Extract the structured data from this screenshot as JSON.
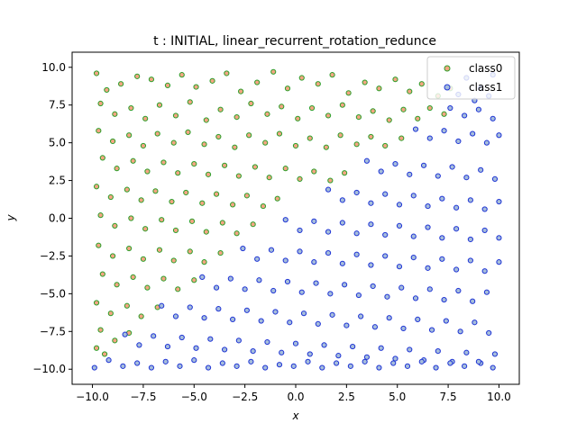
{
  "chart_data": {
    "type": "scatter",
    "title": "t : INITIAL, linear_recurrent_rotation_redunce",
    "xlabel": "x",
    "ylabel": "y",
    "xlim": [
      -11.0,
      11.0
    ],
    "ylim": [
      -11.0,
      11.0
    ],
    "xticks": [
      -10.0,
      -7.5,
      -5.0,
      -2.5,
      0.0,
      2.5,
      5.0,
      7.5,
      10.0
    ],
    "yticks": [
      -10.0,
      -7.5,
      -5.0,
      -2.5,
      0.0,
      2.5,
      5.0,
      7.5,
      10.0
    ],
    "xtick_labels": [
      "−10.0",
      "−7.5",
      "−5.0",
      "−2.5",
      "0.0",
      "2.5",
      "5.0",
      "7.5",
      "10.0"
    ],
    "ytick_labels": [
      "−10.0",
      "−7.5",
      "−5.0",
      "−2.5",
      "0.0",
      "2.5",
      "5.0",
      "7.5",
      "10.0"
    ],
    "grid": false,
    "legend_position": "top-right",
    "series": [
      {
        "name": "class0",
        "face_color": "#f4a582",
        "edge_color": "#2ca02c",
        "points": [
          [
            -9.8,
            9.6
          ],
          [
            -9.3,
            8.5
          ],
          [
            -8.6,
            8.9
          ],
          [
            -7.8,
            9.4
          ],
          [
            -7.1,
            9.2
          ],
          [
            -6.3,
            8.8
          ],
          [
            -5.6,
            9.5
          ],
          [
            -4.9,
            8.7
          ],
          [
            -4.1,
            9.1
          ],
          [
            -3.4,
            9.6
          ],
          [
            -2.7,
            8.4
          ],
          [
            -1.9,
            9.0
          ],
          [
            -1.1,
            9.7
          ],
          [
            -0.4,
            8.6
          ],
          [
            0.3,
            9.3
          ],
          [
            1.1,
            8.9
          ],
          [
            1.8,
            9.5
          ],
          [
            2.6,
            8.3
          ],
          [
            3.4,
            9.0
          ],
          [
            4.1,
            8.6
          ],
          [
            4.9,
            9.2
          ],
          [
            5.6,
            8.4
          ],
          [
            6.2,
            8.9
          ],
          [
            7.0,
            8.1
          ],
          [
            7.6,
            8.6
          ],
          [
            -9.6,
            7.6
          ],
          [
            -8.9,
            6.9
          ],
          [
            -8.1,
            7.3
          ],
          [
            -7.4,
            6.6
          ],
          [
            -6.7,
            7.5
          ],
          [
            -5.9,
            6.8
          ],
          [
            -5.2,
            7.7
          ],
          [
            -4.4,
            6.5
          ],
          [
            -3.7,
            7.2
          ],
          [
            -2.9,
            6.7
          ],
          [
            -2.2,
            7.6
          ],
          [
            -1.4,
            6.9
          ],
          [
            -0.7,
            7.4
          ],
          [
            0.1,
            6.6
          ],
          [
            0.8,
            7.3
          ],
          [
            1.6,
            6.8
          ],
          [
            2.3,
            7.5
          ],
          [
            3.1,
            6.7
          ],
          [
            3.8,
            7.1
          ],
          [
            4.6,
            6.5
          ],
          [
            5.3,
            7.2
          ],
          [
            6.0,
            6.6
          ],
          [
            6.6,
            7.3
          ],
          [
            7.3,
            6.9
          ],
          [
            -9.7,
            5.8
          ],
          [
            -9.0,
            5.1
          ],
          [
            -8.2,
            5.5
          ],
          [
            -7.5,
            4.8
          ],
          [
            -6.8,
            5.6
          ],
          [
            -6.0,
            5.0
          ],
          [
            -5.3,
            5.7
          ],
          [
            -4.5,
            4.9
          ],
          [
            -3.8,
            5.4
          ],
          [
            -3.0,
            4.7
          ],
          [
            -2.3,
            5.5
          ],
          [
            -1.5,
            5.0
          ],
          [
            -0.8,
            5.6
          ],
          [
            0.0,
            4.8
          ],
          [
            0.7,
            5.3
          ],
          [
            1.5,
            4.7
          ],
          [
            2.2,
            5.5
          ],
          [
            3.0,
            4.9
          ],
          [
            3.7,
            5.4
          ],
          [
            4.4,
            4.8
          ],
          [
            5.2,
            5.3
          ],
          [
            -9.5,
            4.0
          ],
          [
            -8.8,
            3.3
          ],
          [
            -8.0,
            3.8
          ],
          [
            -7.3,
            3.1
          ],
          [
            -6.5,
            3.7
          ],
          [
            -5.8,
            3.0
          ],
          [
            -5.0,
            3.6
          ],
          [
            -4.3,
            2.9
          ],
          [
            -3.5,
            3.5
          ],
          [
            -2.8,
            2.8
          ],
          [
            -2.0,
            3.4
          ],
          [
            -1.3,
            2.7
          ],
          [
            -0.5,
            3.3
          ],
          [
            0.2,
            2.6
          ],
          [
            0.9,
            3.1
          ],
          [
            1.7,
            2.5
          ],
          [
            2.4,
            3.0
          ],
          [
            -9.8,
            2.1
          ],
          [
            -9.1,
            1.4
          ],
          [
            -8.3,
            1.9
          ],
          [
            -7.6,
            1.2
          ],
          [
            -6.9,
            1.8
          ],
          [
            -6.1,
            1.1
          ],
          [
            -5.4,
            1.7
          ],
          [
            -4.6,
            1.0
          ],
          [
            -3.9,
            1.6
          ],
          [
            -3.1,
            0.9
          ],
          [
            -2.4,
            1.5
          ],
          [
            -1.6,
            0.8
          ],
          [
            -0.9,
            1.3
          ],
          [
            -9.6,
            0.2
          ],
          [
            -8.9,
            -0.5
          ],
          [
            -8.1,
            0.0
          ],
          [
            -7.4,
            -0.7
          ],
          [
            -6.6,
            -0.1
          ],
          [
            -5.9,
            -0.8
          ],
          [
            -5.1,
            -0.2
          ],
          [
            -4.4,
            -0.9
          ],
          [
            -3.6,
            -0.3
          ],
          [
            -2.9,
            -1.0
          ],
          [
            -2.1,
            -0.4
          ],
          [
            -9.7,
            -1.8
          ],
          [
            -9.0,
            -2.5
          ],
          [
            -8.2,
            -2.0
          ],
          [
            -7.5,
            -2.7
          ],
          [
            -6.7,
            -2.1
          ],
          [
            -6.0,
            -2.8
          ],
          [
            -5.2,
            -2.2
          ],
          [
            -4.5,
            -2.9
          ],
          [
            -3.7,
            -2.3
          ],
          [
            -9.5,
            -3.7
          ],
          [
            -8.8,
            -4.4
          ],
          [
            -8.0,
            -3.9
          ],
          [
            -7.3,
            -4.6
          ],
          [
            -6.5,
            -4.0
          ],
          [
            -5.8,
            -4.7
          ],
          [
            -5.0,
            -4.1
          ],
          [
            -9.8,
            -5.6
          ],
          [
            -9.1,
            -6.3
          ],
          [
            -8.3,
            -5.8
          ],
          [
            -7.6,
            -6.5
          ],
          [
            -6.8,
            -5.9
          ],
          [
            -9.6,
            -7.4
          ],
          [
            -8.9,
            -8.1
          ],
          [
            -8.2,
            -7.6
          ],
          [
            -9.4,
            -9.0
          ],
          [
            -9.8,
            -8.6
          ]
        ]
      },
      {
        "name": "class1",
        "face_color": "#a6bddb",
        "edge_color": "#1f35d6",
        "points": [
          [
            8.4,
            9.3
          ],
          [
            9.1,
            8.6
          ],
          [
            9.7,
            9.5
          ],
          [
            8.0,
            8.2
          ],
          [
            8.8,
            7.8
          ],
          [
            9.5,
            8.1
          ],
          [
            7.6,
            7.3
          ],
          [
            8.3,
            6.8
          ],
          [
            9.0,
            7.2
          ],
          [
            9.7,
            6.6
          ],
          [
            5.9,
            5.9
          ],
          [
            6.6,
            5.3
          ],
          [
            7.3,
            5.8
          ],
          [
            8.0,
            5.1
          ],
          [
            8.7,
            5.6
          ],
          [
            9.4,
            5.0
          ],
          [
            10.0,
            5.5
          ],
          [
            3.5,
            3.8
          ],
          [
            4.2,
            3.1
          ],
          [
            4.9,
            3.6
          ],
          [
            5.6,
            2.9
          ],
          [
            6.3,
            3.5
          ],
          [
            7.0,
            2.8
          ],
          [
            7.7,
            3.4
          ],
          [
            8.4,
            2.7
          ],
          [
            9.1,
            3.2
          ],
          [
            9.8,
            2.6
          ],
          [
            1.6,
            1.9
          ],
          [
            2.3,
            1.2
          ],
          [
            3.0,
            1.7
          ],
          [
            3.7,
            1.0
          ],
          [
            4.4,
            1.6
          ],
          [
            5.1,
            0.9
          ],
          [
            5.8,
            1.5
          ],
          [
            6.5,
            0.8
          ],
          [
            7.2,
            1.3
          ],
          [
            7.9,
            0.7
          ],
          [
            8.6,
            1.2
          ],
          [
            9.3,
            0.6
          ],
          [
            10.0,
            1.1
          ],
          [
            -0.5,
            -0.1
          ],
          [
            0.2,
            -0.8
          ],
          [
            0.9,
            -0.2
          ],
          [
            1.6,
            -0.9
          ],
          [
            2.3,
            -0.3
          ],
          [
            3.0,
            -1.0
          ],
          [
            3.7,
            -0.4
          ],
          [
            4.4,
            -1.1
          ],
          [
            5.1,
            -0.5
          ],
          [
            5.8,
            -1.2
          ],
          [
            6.5,
            -0.6
          ],
          [
            7.2,
            -1.3
          ],
          [
            7.9,
            -0.7
          ],
          [
            8.6,
            -1.4
          ],
          [
            9.3,
            -0.8
          ],
          [
            10.0,
            -1.3
          ],
          [
            -2.6,
            -2.0
          ],
          [
            -1.9,
            -2.7
          ],
          [
            -1.2,
            -2.1
          ],
          [
            -0.5,
            -2.8
          ],
          [
            0.2,
            -2.2
          ],
          [
            0.9,
            -2.9
          ],
          [
            1.6,
            -2.3
          ],
          [
            2.3,
            -3.0
          ],
          [
            3.0,
            -2.4
          ],
          [
            3.7,
            -3.1
          ],
          [
            4.4,
            -2.5
          ],
          [
            5.1,
            -3.2
          ],
          [
            5.8,
            -2.6
          ],
          [
            6.5,
            -3.3
          ],
          [
            7.2,
            -2.7
          ],
          [
            7.9,
            -3.4
          ],
          [
            8.6,
            -2.8
          ],
          [
            9.3,
            -3.5
          ],
          [
            10.0,
            -2.9
          ],
          [
            -4.6,
            -3.9
          ],
          [
            -3.9,
            -4.6
          ],
          [
            -3.2,
            -4.0
          ],
          [
            -2.5,
            -4.7
          ],
          [
            -1.8,
            -4.1
          ],
          [
            -1.1,
            -4.8
          ],
          [
            -0.4,
            -4.2
          ],
          [
            0.3,
            -4.9
          ],
          [
            1.0,
            -4.3
          ],
          [
            1.7,
            -5.0
          ],
          [
            2.4,
            -4.4
          ],
          [
            3.1,
            -5.1
          ],
          [
            3.8,
            -4.5
          ],
          [
            4.5,
            -5.2
          ],
          [
            5.2,
            -4.6
          ],
          [
            5.9,
            -5.3
          ],
          [
            6.6,
            -4.7
          ],
          [
            7.3,
            -5.4
          ],
          [
            8.0,
            -4.8
          ],
          [
            8.7,
            -5.5
          ],
          [
            9.4,
            -4.9
          ],
          [
            -6.6,
            -5.8
          ],
          [
            -5.9,
            -6.5
          ],
          [
            -5.2,
            -5.9
          ],
          [
            -4.5,
            -6.6
          ],
          [
            -3.8,
            -6.0
          ],
          [
            -3.1,
            -6.7
          ],
          [
            -2.4,
            -6.1
          ],
          [
            -1.7,
            -6.8
          ],
          [
            -1.0,
            -6.2
          ],
          [
            -0.3,
            -6.9
          ],
          [
            0.4,
            -6.3
          ],
          [
            1.1,
            -7.0
          ],
          [
            1.8,
            -6.4
          ],
          [
            2.5,
            -7.1
          ],
          [
            3.2,
            -6.5
          ],
          [
            3.9,
            -7.2
          ],
          [
            4.6,
            -6.6
          ],
          [
            5.3,
            -7.3
          ],
          [
            6.0,
            -6.7
          ],
          [
            6.7,
            -7.4
          ],
          [
            7.4,
            -6.8
          ],
          [
            8.1,
            -7.5
          ],
          [
            8.8,
            -6.9
          ],
          [
            9.5,
            -7.6
          ],
          [
            -8.4,
            -7.7
          ],
          [
            -7.7,
            -8.4
          ],
          [
            -7.0,
            -7.8
          ],
          [
            -6.3,
            -8.5
          ],
          [
            -5.6,
            -7.9
          ],
          [
            -4.9,
            -8.6
          ],
          [
            -4.2,
            -8.0
          ],
          [
            -3.5,
            -8.7
          ],
          [
            -2.8,
            -8.1
          ],
          [
            -2.1,
            -8.8
          ],
          [
            -1.4,
            -8.2
          ],
          [
            -0.7,
            -8.9
          ],
          [
            0.0,
            -8.3
          ],
          [
            0.7,
            -9.0
          ],
          [
            1.4,
            -8.4
          ],
          [
            2.1,
            -9.1
          ],
          [
            2.8,
            -8.5
          ],
          [
            3.5,
            -9.2
          ],
          [
            4.2,
            -8.6
          ],
          [
            4.9,
            -9.3
          ],
          [
            5.6,
            -8.7
          ],
          [
            6.3,
            -9.4
          ],
          [
            7.0,
            -8.8
          ],
          [
            7.7,
            -9.5
          ],
          [
            8.4,
            -8.9
          ],
          [
            9.1,
            -9.6
          ],
          [
            9.8,
            -9.0
          ],
          [
            -9.9,
            -9.9
          ],
          [
            -9.2,
            -9.4
          ],
          [
            -8.5,
            -9.8
          ],
          [
            -7.8,
            -9.6
          ],
          [
            -7.1,
            -9.9
          ],
          [
            -6.4,
            -9.5
          ],
          [
            -5.7,
            -9.8
          ],
          [
            -5.0,
            -9.4
          ],
          [
            -4.3,
            -9.9
          ],
          [
            -3.6,
            -9.6
          ],
          [
            -2.9,
            -9.8
          ],
          [
            -2.2,
            -9.5
          ],
          [
            -1.5,
            -9.9
          ],
          [
            -0.8,
            -9.7
          ],
          [
            -0.1,
            -9.8
          ],
          [
            0.6,
            -9.5
          ],
          [
            1.3,
            -9.9
          ],
          [
            2.0,
            -9.6
          ],
          [
            2.7,
            -9.8
          ],
          [
            3.4,
            -9.5
          ],
          [
            4.1,
            -9.9
          ],
          [
            4.8,
            -9.6
          ],
          [
            5.5,
            -9.8
          ],
          [
            6.2,
            -9.5
          ],
          [
            6.9,
            -9.9
          ],
          [
            7.6,
            -9.6
          ],
          [
            8.3,
            -9.8
          ],
          [
            9.0,
            -9.5
          ],
          [
            9.7,
            -9.9
          ]
        ]
      }
    ]
  }
}
